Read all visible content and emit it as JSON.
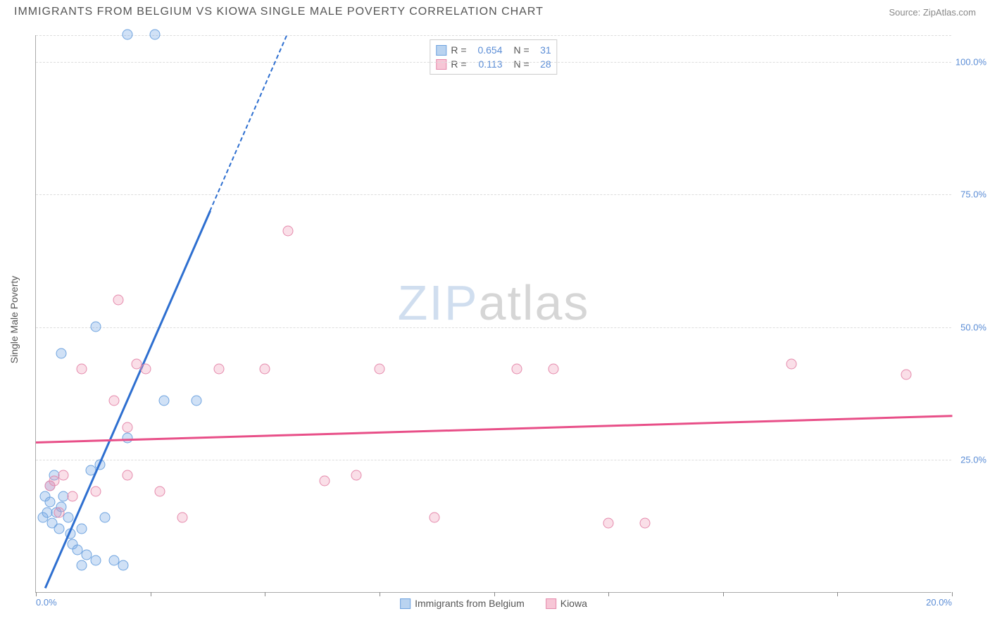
{
  "header": {
    "title": "IMMIGRANTS FROM BELGIUM VS KIOWA SINGLE MALE POVERTY CORRELATION CHART",
    "source_prefix": "Source: ",
    "source_name": "ZipAtlas.com"
  },
  "axes": {
    "y_label": "Single Male Poverty",
    "x_min": 0,
    "x_max": 20,
    "y_min": 0,
    "y_max": 105,
    "y_ticks": [
      {
        "v": 25,
        "label": "25.0%"
      },
      {
        "v": 50,
        "label": "50.0%"
      },
      {
        "v": 75,
        "label": "75.0%"
      },
      {
        "v": 100,
        "label": "100.0%"
      }
    ],
    "x_ticks": [
      0,
      2.5,
      5,
      7.5,
      10,
      12.5,
      15,
      17.5,
      20
    ],
    "x_tick_labels": [
      {
        "v": 0,
        "label": "0.0%",
        "align": "left"
      },
      {
        "v": 20,
        "label": "20.0%",
        "align": "right"
      }
    ],
    "extra_h_grid": [
      105
    ]
  },
  "series": [
    {
      "name": "Immigrants from Belgium",
      "fill": "rgba(120,170,230,0.35)",
      "stroke": "#6ea3df",
      "line_color": "#2e6fd0",
      "legend_fill": "#b9d3f0",
      "legend_border": "#6ea3df",
      "R": "0.654",
      "N": "31",
      "trend": {
        "x1": 0.2,
        "y1": 1,
        "x2": 3.8,
        "y2": 72,
        "dash_to_y": 105
      },
      "points": [
        [
          0.15,
          14
        ],
        [
          0.2,
          18
        ],
        [
          0.25,
          15
        ],
        [
          0.3,
          17
        ],
        [
          0.35,
          13
        ],
        [
          0.3,
          20
        ],
        [
          0.4,
          22
        ],
        [
          0.45,
          15
        ],
        [
          0.55,
          16
        ],
        [
          0.5,
          12
        ],
        [
          0.6,
          18
        ],
        [
          0.7,
          14
        ],
        [
          0.75,
          11
        ],
        [
          0.8,
          9
        ],
        [
          0.9,
          8
        ],
        [
          1.0,
          12
        ],
        [
          1.1,
          7
        ],
        [
          1.3,
          6
        ],
        [
          1.2,
          23
        ],
        [
          1.4,
          24
        ],
        [
          1.5,
          14
        ],
        [
          1.7,
          6
        ],
        [
          1.9,
          5
        ],
        [
          1.3,
          50
        ],
        [
          0.55,
          45
        ],
        [
          2.0,
          105
        ],
        [
          2.6,
          105
        ],
        [
          2.0,
          29
        ],
        [
          2.8,
          36
        ],
        [
          1.0,
          5
        ],
        [
          3.5,
          36
        ]
      ]
    },
    {
      "name": "Kiowa",
      "fill": "rgba(240,150,180,0.3)",
      "stroke": "#e58aac",
      "line_color": "#e84f88",
      "legend_fill": "#f7c6d6",
      "legend_border": "#e58aac",
      "R": "0.113",
      "N": "28",
      "trend": {
        "x1": 0,
        "y1": 28.5,
        "x2": 20,
        "y2": 33.5
      },
      "points": [
        [
          0.3,
          20
        ],
        [
          0.4,
          21
        ],
        [
          0.6,
          22
        ],
        [
          0.5,
          15
        ],
        [
          0.8,
          18
        ],
        [
          1.0,
          42
        ],
        [
          1.3,
          19
        ],
        [
          1.7,
          36
        ],
        [
          2.0,
          31
        ],
        [
          1.8,
          55
        ],
        [
          2.2,
          43
        ],
        [
          2.4,
          42
        ],
        [
          2.7,
          19
        ],
        [
          3.2,
          14
        ],
        [
          4.0,
          42
        ],
        [
          5.0,
          42
        ],
        [
          5.5,
          68
        ],
        [
          6.3,
          21
        ],
        [
          7.0,
          22
        ],
        [
          7.5,
          42
        ],
        [
          8.7,
          14
        ],
        [
          10.5,
          42
        ],
        [
          11.3,
          42
        ],
        [
          12.5,
          13
        ],
        [
          13.3,
          13
        ],
        [
          16.5,
          43
        ],
        [
          19.0,
          41
        ],
        [
          2.0,
          22
        ]
      ]
    }
  ],
  "bottom_legend": [
    {
      "label": "Immigrants from Belgium",
      "fill": "#b9d3f0",
      "border": "#6ea3df"
    },
    {
      "label": "Kiowa",
      "fill": "#f7c6d6",
      "border": "#e58aac"
    }
  ],
  "watermark": {
    "part1": "ZIP",
    "part2": "atlas"
  }
}
